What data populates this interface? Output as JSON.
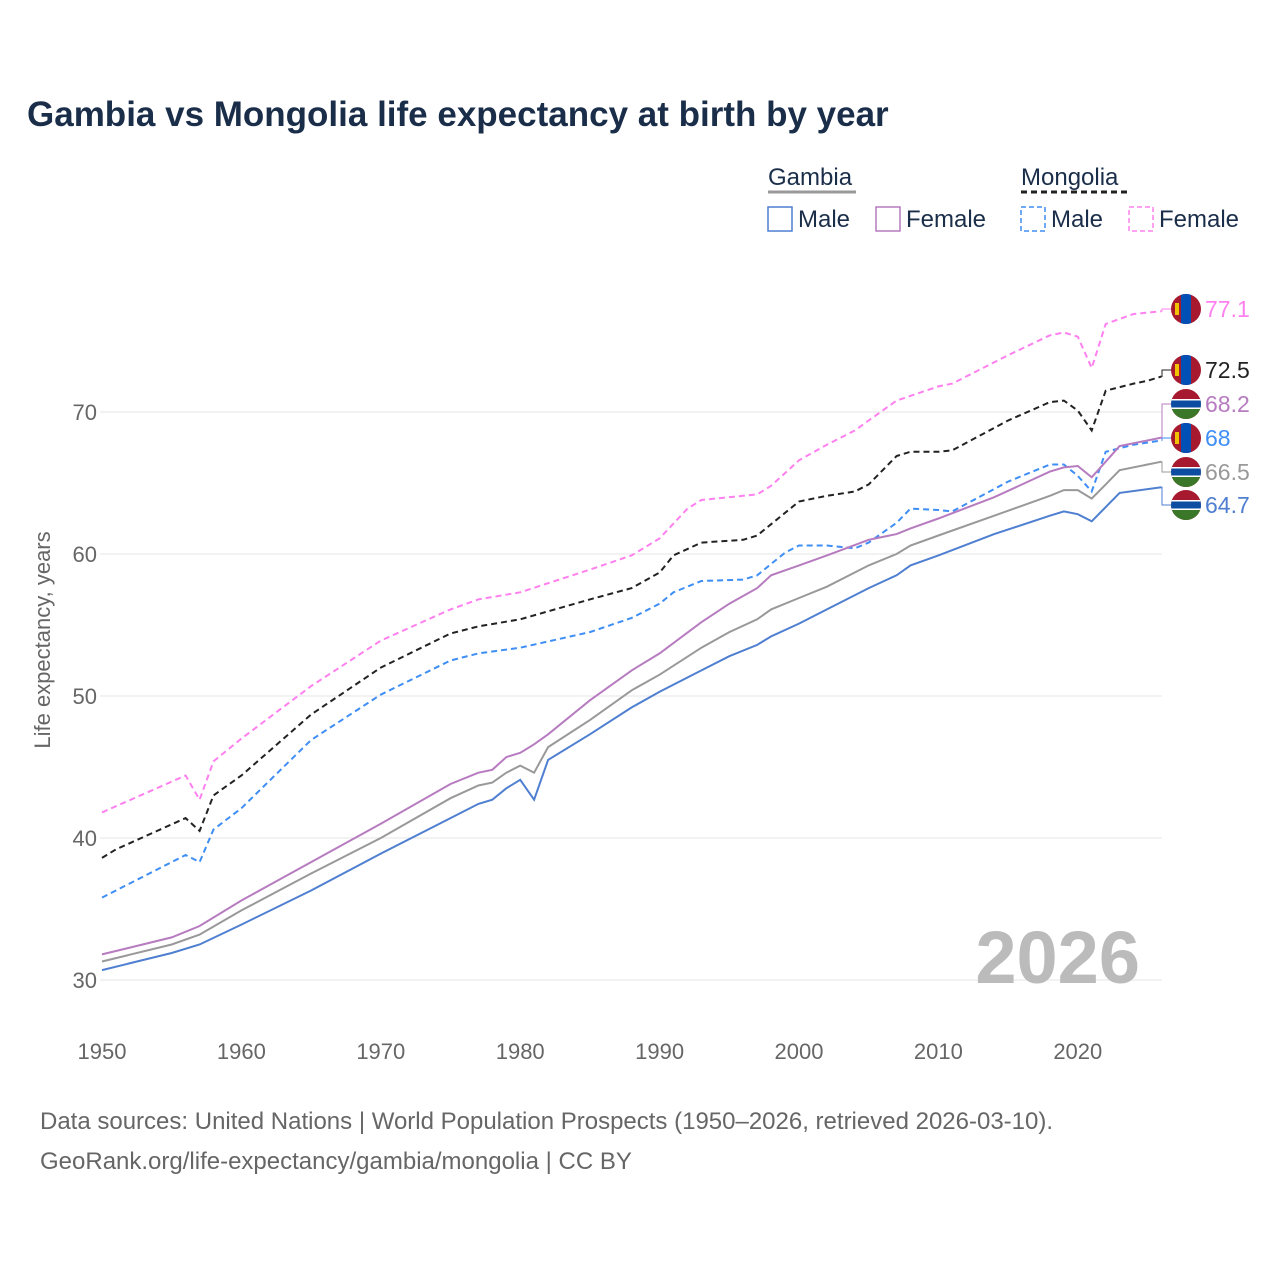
{
  "chart_data": {
    "type": "line",
    "title": "Gambia vs Mongolia life expectancy at birth by year",
    "xlabel": "",
    "ylabel": "Life expectancy, years",
    "xlim": [
      1950,
      2026
    ],
    "ylim": [
      30,
      78
    ],
    "xticks": [
      1950,
      1960,
      1970,
      1980,
      1990,
      2000,
      2010,
      2020
    ],
    "yticks": [
      30,
      40,
      50,
      60,
      70
    ],
    "grid": true,
    "year_watermark": "2026",
    "legend": {
      "groups": [
        {
          "name": "Gambia",
          "items": [
            "Male",
            "Female"
          ]
        },
        {
          "name": "Mongolia",
          "items": [
            "Male",
            "Female"
          ]
        }
      ],
      "placement": "top-right"
    },
    "series": [
      {
        "name": "Mongolia Female",
        "color": "#ff80ef",
        "dash": true,
        "flag": "mongolia",
        "end_label": "77.1",
        "points": [
          [
            1950,
            41.8
          ],
          [
            1956,
            44.4
          ],
          [
            1957,
            42.7
          ],
          [
            1958,
            45.4
          ],
          [
            1960,
            47.0
          ],
          [
            1965,
            50.7
          ],
          [
            1970,
            53.9
          ],
          [
            1975,
            56.1
          ],
          [
            1977,
            56.8
          ],
          [
            1980,
            57.3
          ],
          [
            1985,
            58.9
          ],
          [
            1988,
            59.9
          ],
          [
            1990,
            61.1
          ],
          [
            1992,
            63.2
          ],
          [
            1993,
            63.8
          ],
          [
            1996,
            64.1
          ],
          [
            1997,
            64.2
          ],
          [
            1998,
            64.8
          ],
          [
            2000,
            66.6
          ],
          [
            2002,
            67.7
          ],
          [
            2004,
            68.7
          ],
          [
            2005,
            69.4
          ],
          [
            2007,
            70.8
          ],
          [
            2010,
            71.8
          ],
          [
            2011,
            72.0
          ],
          [
            2015,
            74.0
          ],
          [
            2018,
            75.4
          ],
          [
            2019,
            75.6
          ],
          [
            2020,
            75.3
          ],
          [
            2021,
            73.1
          ],
          [
            2022,
            76.2
          ],
          [
            2024,
            76.9
          ],
          [
            2026,
            77.1
          ]
        ]
      },
      {
        "name": "Mongolia Both",
        "color": "#222222",
        "dash": true,
        "flag": "mongolia",
        "end_label": "72.5",
        "points": [
          [
            1950,
            38.6
          ],
          [
            1951,
            39.2
          ],
          [
            1956,
            41.4
          ],
          [
            1957,
            40.5
          ],
          [
            1958,
            43.0
          ],
          [
            1960,
            44.4
          ],
          [
            1965,
            48.7
          ],
          [
            1970,
            52.0
          ],
          [
            1975,
            54.4
          ],
          [
            1977,
            54.9
          ],
          [
            1980,
            55.4
          ],
          [
            1985,
            56.8
          ],
          [
            1988,
            57.6
          ],
          [
            1990,
            58.7
          ],
          [
            1991,
            59.9
          ],
          [
            1993,
            60.8
          ],
          [
            1996,
            61.0
          ],
          [
            1997,
            61.3
          ],
          [
            2000,
            63.7
          ],
          [
            2002,
            64.1
          ],
          [
            2004,
            64.4
          ],
          [
            2005,
            64.9
          ],
          [
            2007,
            66.9
          ],
          [
            2008,
            67.2
          ],
          [
            2010,
            67.2
          ],
          [
            2011,
            67.3
          ],
          [
            2015,
            69.4
          ],
          [
            2018,
            70.7
          ],
          [
            2019,
            70.8
          ],
          [
            2020,
            70.1
          ],
          [
            2021,
            68.7
          ],
          [
            2022,
            71.5
          ],
          [
            2024,
            72.0
          ],
          [
            2025,
            72.2
          ],
          [
            2026,
            72.5
          ]
        ]
      },
      {
        "name": "Mongolia Male",
        "color": "#3f8ef5",
        "dash": true,
        "flag": "mongolia",
        "end_label": "68",
        "points": [
          [
            1950,
            35.8
          ],
          [
            1956,
            38.8
          ],
          [
            1957,
            38.3
          ],
          [
            1958,
            40.6
          ],
          [
            1960,
            42.1
          ],
          [
            1965,
            46.9
          ],
          [
            1970,
            50.1
          ],
          [
            1975,
            52.5
          ],
          [
            1977,
            53.0
          ],
          [
            1980,
            53.4
          ],
          [
            1985,
            54.5
          ],
          [
            1988,
            55.5
          ],
          [
            1990,
            56.5
          ],
          [
            1991,
            57.3
          ],
          [
            1993,
            58.1
          ],
          [
            1996,
            58.2
          ],
          [
            1997,
            58.5
          ],
          [
            1999,
            60.1
          ],
          [
            2000,
            60.6
          ],
          [
            2002,
            60.6
          ],
          [
            2004,
            60.4
          ],
          [
            2005,
            60.8
          ],
          [
            2007,
            62.2
          ],
          [
            2008,
            63.2
          ],
          [
            2010,
            63.1
          ],
          [
            2011,
            63.0
          ],
          [
            2015,
            65.1
          ],
          [
            2018,
            66.3
          ],
          [
            2019,
            66.3
          ],
          [
            2020,
            65.5
          ],
          [
            2021,
            64.4
          ],
          [
            2022,
            67.2
          ],
          [
            2024,
            67.7
          ],
          [
            2026,
            68.0
          ]
        ]
      },
      {
        "name": "Gambia Female",
        "color": "#b77bc0",
        "dash": false,
        "flag": "gambia",
        "end_label": "68.2",
        "points": [
          [
            1950,
            31.8
          ],
          [
            1955,
            33.0
          ],
          [
            1957,
            33.8
          ],
          [
            1960,
            35.6
          ],
          [
            1965,
            38.3
          ],
          [
            1970,
            41.0
          ],
          [
            1975,
            43.8
          ],
          [
            1977,
            44.6
          ],
          [
            1978,
            44.8
          ],
          [
            1979,
            45.7
          ],
          [
            1980,
            46.0
          ],
          [
            1981,
            46.6
          ],
          [
            1982,
            47.3
          ],
          [
            1985,
            49.7
          ],
          [
            1988,
            51.8
          ],
          [
            1990,
            53.0
          ],
          [
            1993,
            55.2
          ],
          [
            1995,
            56.5
          ],
          [
            1997,
            57.6
          ],
          [
            1998,
            58.5
          ],
          [
            2000,
            59.2
          ],
          [
            2002,
            59.9
          ],
          [
            2005,
            61.0
          ],
          [
            2007,
            61.4
          ],
          [
            2008,
            61.8
          ],
          [
            2010,
            62.5
          ],
          [
            2014,
            64.0
          ],
          [
            2018,
            65.8
          ],
          [
            2019,
            66.1
          ],
          [
            2020,
            66.2
          ],
          [
            2021,
            65.4
          ],
          [
            2022,
            66.5
          ],
          [
            2023,
            67.6
          ],
          [
            2026,
            68.2
          ]
        ]
      },
      {
        "name": "Gambia Both",
        "color": "#999999",
        "dash": false,
        "flag": "gambia",
        "end_label": "66.5",
        "points": [
          [
            1950,
            31.3
          ],
          [
            1955,
            32.5
          ],
          [
            1957,
            33.2
          ],
          [
            1960,
            34.9
          ],
          [
            1965,
            37.5
          ],
          [
            1970,
            40.0
          ],
          [
            1975,
            42.8
          ],
          [
            1977,
            43.7
          ],
          [
            1978,
            43.9
          ],
          [
            1979,
            44.6
          ],
          [
            1980,
            45.1
          ],
          [
            1981,
            44.6
          ],
          [
            1982,
            46.4
          ],
          [
            1985,
            48.3
          ],
          [
            1988,
            50.4
          ],
          [
            1990,
            51.5
          ],
          [
            1993,
            53.4
          ],
          [
            1995,
            54.5
          ],
          [
            1997,
            55.4
          ],
          [
            1998,
            56.1
          ],
          [
            2000,
            56.9
          ],
          [
            2002,
            57.7
          ],
          [
            2005,
            59.2
          ],
          [
            2007,
            60.0
          ],
          [
            2008,
            60.6
          ],
          [
            2010,
            61.3
          ],
          [
            2014,
            62.7
          ],
          [
            2018,
            64.1
          ],
          [
            2019,
            64.5
          ],
          [
            2020,
            64.5
          ],
          [
            2021,
            63.9
          ],
          [
            2022,
            64.9
          ],
          [
            2023,
            65.9
          ],
          [
            2026,
            66.5
          ]
        ]
      },
      {
        "name": "Gambia Male",
        "color": "#4f7fd0",
        "dash": false,
        "flag": "gambia",
        "end_label": "64.7",
        "points": [
          [
            1950,
            30.7
          ],
          [
            1955,
            31.9
          ],
          [
            1957,
            32.5
          ],
          [
            1960,
            33.9
          ],
          [
            1965,
            36.3
          ],
          [
            1970,
            38.9
          ],
          [
            1975,
            41.4
          ],
          [
            1977,
            42.4
          ],
          [
            1978,
            42.7
          ],
          [
            1979,
            43.5
          ],
          [
            1980,
            44.1
          ],
          [
            1981,
            42.7
          ],
          [
            1982,
            45.5
          ],
          [
            1985,
            47.3
          ],
          [
            1988,
            49.2
          ],
          [
            1990,
            50.3
          ],
          [
            1993,
            51.8
          ],
          [
            1995,
            52.8
          ],
          [
            1997,
            53.6
          ],
          [
            1998,
            54.2
          ],
          [
            2000,
            55.1
          ],
          [
            2002,
            56.1
          ],
          [
            2005,
            57.6
          ],
          [
            2007,
            58.5
          ],
          [
            2008,
            59.2
          ],
          [
            2010,
            59.9
          ],
          [
            2014,
            61.4
          ],
          [
            2018,
            62.7
          ],
          [
            2019,
            63.0
          ],
          [
            2020,
            62.8
          ],
          [
            2021,
            62.3
          ],
          [
            2022,
            63.3
          ],
          [
            2023,
            64.3
          ],
          [
            2026,
            64.7
          ]
        ]
      }
    ]
  },
  "footer": {
    "line1": "Data sources: United Nations | World Population Prospects (1950–2026, retrieved 2026-03-10).",
    "line2": "GeoRank.org/life-expectancy/gambia/mongolia | CC BY"
  }
}
